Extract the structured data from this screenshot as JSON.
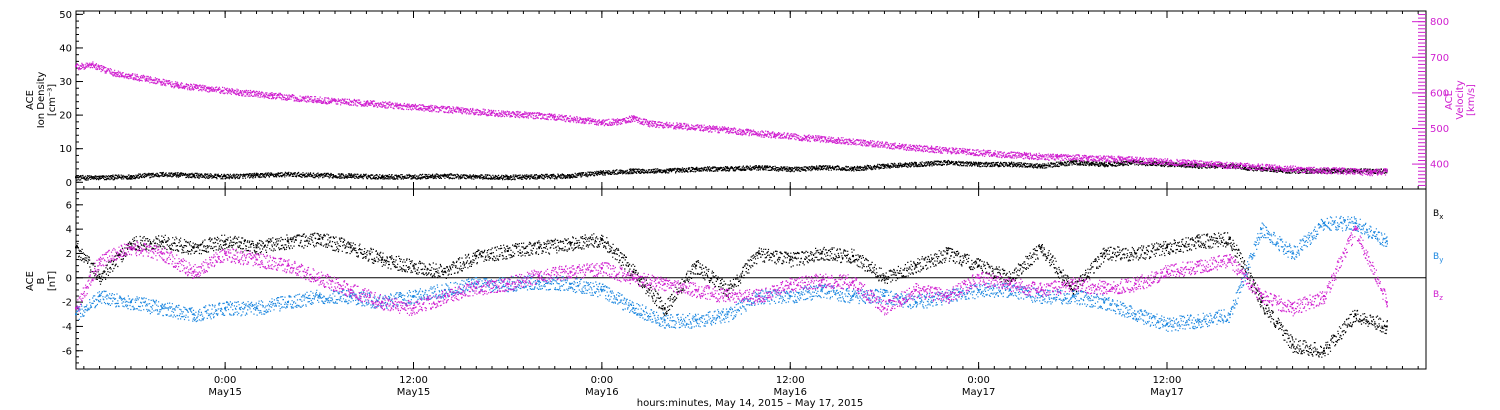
{
  "colors": {
    "axis": "#000000",
    "magenta": "#d020d0",
    "blue": "#1e88e0",
    "black": "#000000"
  },
  "chart_data": [
    {
      "type": "scatter",
      "xlim_hours": [
        -9.5,
        76.5
      ],
      "left_axis": {
        "label_lines": [
          "ACE",
          "Ion Density",
          "[cm⁻³]"
        ],
        "ylim": [
          -2,
          51
        ],
        "ticks": [
          0,
          10,
          20,
          30,
          40,
          50
        ],
        "tick_labels": [
          "0",
          "10",
          "20",
          "30",
          "40",
          "50"
        ]
      },
      "right_axis": {
        "label_lines": [
          "ACE",
          "Velocity",
          "[km/s]"
        ],
        "ylim": [
          330,
          830
        ],
        "ticks": [
          400,
          500,
          600,
          700,
          800
        ],
        "tick_labels": [
          "400",
          "500",
          "600",
          "700",
          "800"
        ]
      },
      "series": [
        {
          "color": "black",
          "axis": "left",
          "x": [
            -9.5,
            -8,
            -6,
            -4,
            -2,
            0,
            2,
            4,
            6,
            8,
            10,
            12,
            14,
            16,
            18,
            20,
            22,
            24,
            26,
            28,
            30,
            32,
            34,
            36,
            38,
            40,
            42,
            44,
            46,
            48,
            50,
            52,
            54,
            56,
            58,
            60,
            62,
            64,
            66,
            68,
            70,
            72,
            74
          ],
          "y": [
            1.5,
            1.5,
            1.8,
            2.5,
            2.2,
            1.8,
            2.2,
            2.5,
            2.2,
            2.0,
            1.8,
            1.8,
            2.0,
            1.8,
            1.6,
            1.8,
            2.0,
            3.0,
            3.5,
            3.5,
            4.0,
            4.2,
            4.5,
            4.0,
            4.5,
            4.2,
            5.0,
            5.5,
            6.0,
            5.5,
            5.5,
            5.0,
            6.0,
            5.5,
            6.0,
            5.5,
            5.0,
            5.0,
            4.0,
            3.5,
            3.5,
            3.5,
            3.5
          ]
        },
        {
          "color": "magenta",
          "axis": "right",
          "x": [
            -9.5,
            -8.5,
            -7,
            -5,
            -3,
            -1,
            1,
            3,
            5,
            7,
            9,
            11,
            13,
            15,
            17,
            19,
            21,
            23,
            24,
            25,
            26,
            27,
            29,
            31,
            33,
            35,
            37,
            39,
            41,
            43,
            45,
            47,
            49,
            51,
            53,
            55,
            57,
            59,
            61,
            63,
            65,
            67,
            69,
            71,
            73,
            74
          ],
          "y": [
            675,
            680,
            655,
            640,
            622,
            612,
            602,
            594,
            584,
            578,
            572,
            565,
            558,
            552,
            545,
            540,
            533,
            523,
            518,
            520,
            530,
            515,
            508,
            500,
            492,
            483,
            475,
            468,
            460,
            450,
            443,
            437,
            430,
            425,
            420,
            418,
            415,
            410,
            405,
            400,
            395,
            390,
            385,
            382,
            378,
            380
          ]
        }
      ]
    },
    {
      "type": "scatter",
      "xlim_hours": [
        -9.5,
        76.5
      ],
      "y_axis": {
        "label_lines": [
          "ACE",
          "B",
          "[nT]"
        ],
        "ylim": [
          -7.5,
          7.3
        ],
        "ticks": [
          -6,
          -4,
          -2,
          0,
          2,
          4,
          6
        ],
        "tick_labels": [
          "-6",
          "-4",
          "-2",
          "0",
          "2",
          "4",
          "6"
        ]
      },
      "series": [
        {
          "name": "Bx",
          "label_main": "B",
          "label_sub": "x",
          "color": "black",
          "x": [
            -9.5,
            -8,
            -6,
            -4,
            -2,
            0,
            2,
            4,
            6,
            8,
            10,
            12,
            14,
            16,
            18,
            20,
            22,
            24,
            26,
            28,
            30,
            32,
            34,
            36,
            38,
            40,
            42,
            44,
            46,
            48,
            50,
            52,
            54,
            56,
            58,
            60,
            62,
            64,
            66,
            68,
            70,
            72,
            74
          ],
          "y": [
            2.5,
            0.0,
            2.8,
            3.0,
            2.5,
            3.0,
            2.5,
            3.0,
            3.2,
            2.5,
            1.5,
            1.0,
            0.5,
            1.8,
            2.2,
            2.5,
            2.8,
            3.2,
            0.5,
            -2.5,
            1.0,
            -1.0,
            2.0,
            1.5,
            2.0,
            1.8,
            0.0,
            1.0,
            2.0,
            1.0,
            0.0,
            2.5,
            -1.0,
            2.0,
            2.0,
            2.5,
            3.0,
            3.2,
            -2.0,
            -5.5,
            -6.0,
            -3.0,
            -4.0
          ]
        },
        {
          "name": "By",
          "label_main": "B",
          "label_sub": "y",
          "color": "blue",
          "x": [
            -9.5,
            -8,
            -6,
            -4,
            -2,
            0,
            2,
            4,
            6,
            8,
            10,
            12,
            14,
            16,
            18,
            20,
            22,
            24,
            26,
            28,
            30,
            32,
            34,
            36,
            38,
            40,
            42,
            44,
            46,
            48,
            50,
            52,
            54,
            56,
            58,
            60,
            62,
            64,
            66,
            68,
            70,
            72,
            74
          ],
          "y": [
            -3.0,
            -1.5,
            -2.0,
            -2.5,
            -3.0,
            -2.5,
            -2.5,
            -2.0,
            -1.5,
            -1.5,
            -2.0,
            -1.5,
            -1.0,
            -0.5,
            -0.5,
            -0.3,
            -0.5,
            -1.0,
            -2.5,
            -3.5,
            -3.5,
            -3.0,
            -1.5,
            -1.5,
            -1.0,
            -1.5,
            -1.5,
            -2.0,
            -1.5,
            -1.0,
            -1.0,
            -1.5,
            -1.5,
            -2.0,
            -3.0,
            -3.8,
            -3.5,
            -3.0,
            4.0,
            2.0,
            4.5,
            4.5,
            3.0
          ]
        },
        {
          "name": "Bz",
          "label_main": "B",
          "label_sub": "z",
          "color": "magenta",
          "x": [
            -9.5,
            -8,
            -6,
            -4,
            -2,
            0,
            2,
            4,
            6,
            8,
            10,
            12,
            14,
            16,
            18,
            20,
            22,
            24,
            26,
            28,
            30,
            32,
            34,
            36,
            38,
            40,
            42,
            44,
            46,
            48,
            50,
            52,
            54,
            56,
            58,
            60,
            62,
            64,
            66,
            68,
            70,
            72,
            74
          ],
          "y": [
            -2.5,
            1.5,
            2.5,
            2.0,
            0.5,
            2.0,
            1.5,
            1.0,
            0.0,
            -1.0,
            -2.0,
            -2.5,
            -1.5,
            -0.8,
            -0.5,
            0.2,
            0.5,
            0.8,
            0.0,
            -0.5,
            -1.0,
            -1.5,
            -1.5,
            -0.5,
            -0.2,
            -0.3,
            -2.5,
            -1.0,
            -1.5,
            0.0,
            -0.5,
            -1.0,
            -0.5,
            -0.8,
            -0.5,
            0.5,
            1.0,
            1.5,
            -1.5,
            -2.5,
            -1.5,
            4.0,
            -2.0
          ]
        }
      ]
    }
  ],
  "x_axis": {
    "ticks_hours": [
      0,
      12,
      24,
      36,
      48,
      60
    ],
    "tick_labels": [
      {
        "time": "0:00",
        "date": "May15"
      },
      {
        "time": "12:00",
        "date": "May15"
      },
      {
        "time": "0:00",
        "date": "May16"
      },
      {
        "time": "12:00",
        "date": "May16"
      },
      {
        "time": "0:00",
        "date": "May17"
      },
      {
        "time": "12:00",
        "date": "May17"
      }
    ],
    "title": "hours:minutes, May 14, 2015 – May 17, 2015"
  }
}
